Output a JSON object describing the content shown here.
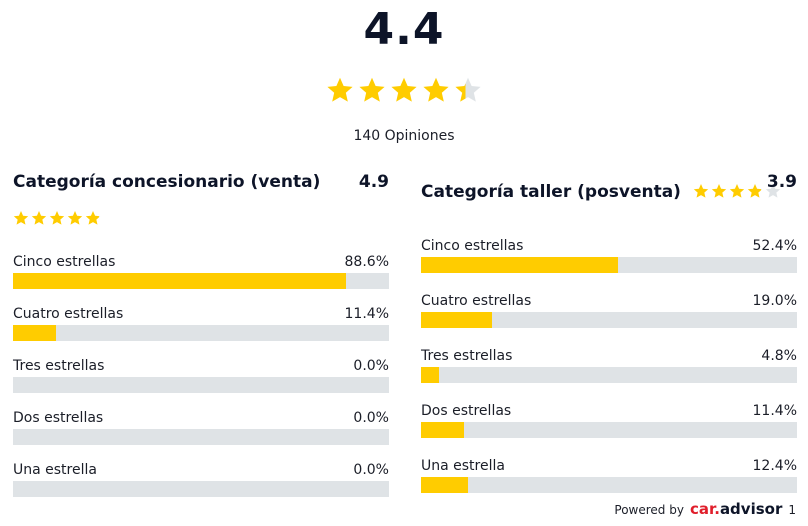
{
  "overall": {
    "score": "4.4",
    "rating": 4.4,
    "reviews": "140 Opiniones"
  },
  "colors": {
    "star": "#ffcc00",
    "star_empty": "#dfe3e6",
    "bar_fill": "#ffcc00",
    "bar_track": "#dfe3e6"
  },
  "sales": {
    "title": "Categoría concesionario (venta)",
    "score": "4.9",
    "rating": 4.9,
    "rows": [
      {
        "label": "Cinco estrellas",
        "pct": "88.6%",
        "value": 88.6
      },
      {
        "label": "Cuatro estrellas",
        "pct": "11.4%",
        "value": 11.4
      },
      {
        "label": "Tres estrellas",
        "pct": "0.0%",
        "value": 0.0
      },
      {
        "label": "Dos estrellas",
        "pct": "0.0%",
        "value": 0.0
      },
      {
        "label": "Una estrella",
        "pct": "0.0%",
        "value": 0.0
      }
    ]
  },
  "workshop": {
    "title": "Categoría taller (posventa)",
    "score": "3.9",
    "rating": 3.9,
    "rows": [
      {
        "label": "Cinco estrellas",
        "pct": "52.4%",
        "value": 52.4
      },
      {
        "label": "Cuatro estrellas",
        "pct": "19.0%",
        "value": 19.0
      },
      {
        "label": "Tres estrellas",
        "pct": "4.8%",
        "value": 4.8
      },
      {
        "label": "Dos estrellas",
        "pct": "11.4%",
        "value": 11.4
      },
      {
        "label": "Una estrella",
        "pct": "12.4%",
        "value": 12.4
      }
    ]
  },
  "footer": {
    "powered_by": "Powered by",
    "brand_car": "car",
    "brand_dot": ".",
    "brand_advisor": "advisor",
    "brand_suffix": "1"
  }
}
